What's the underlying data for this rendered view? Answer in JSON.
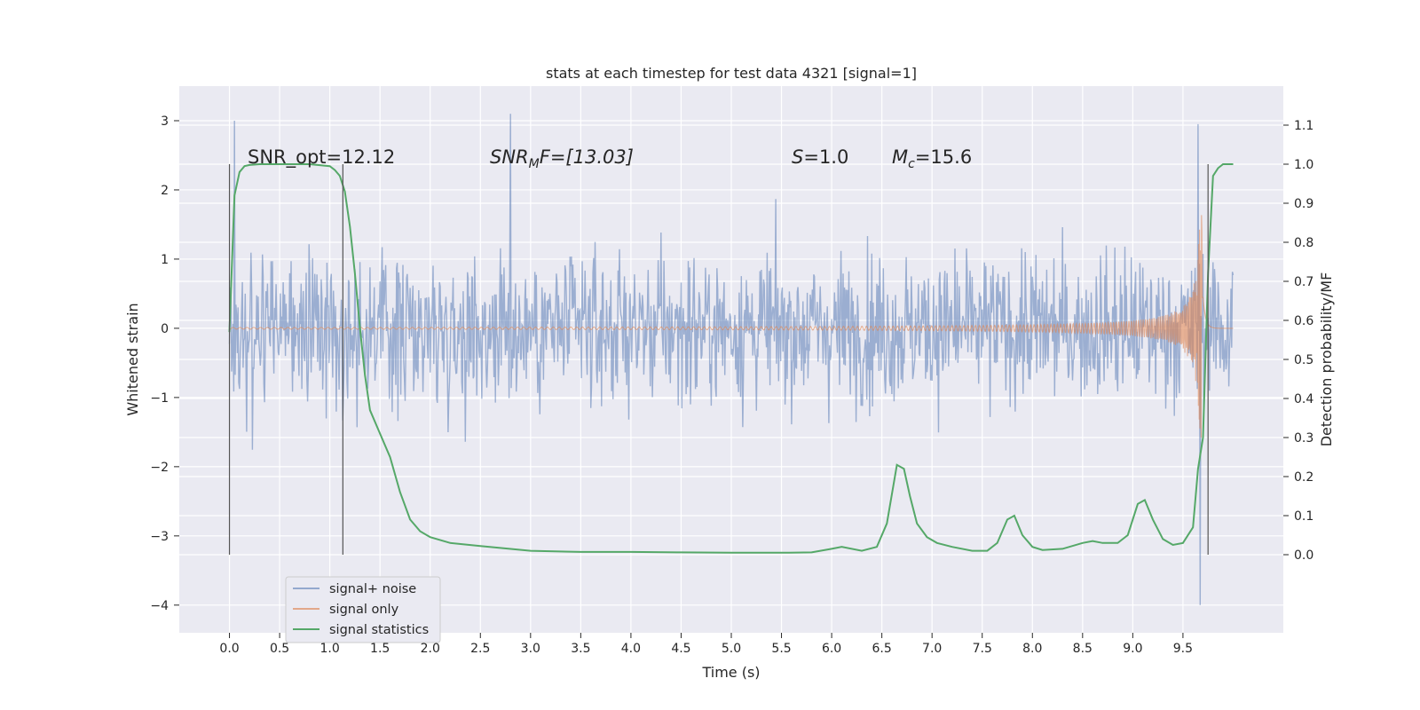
{
  "chart_data": {
    "type": "line",
    "title": "stats at each timestep for test data 4321 [signal=1]",
    "xlabel": "Time (s)",
    "ylabel_left": "Whitened strain",
    "ylabel_right": "Detection probability/MF",
    "xlim": [
      -0.5,
      10.5
    ],
    "ylim_left": [
      -4.4,
      3.5
    ],
    "ylim_right": [
      -0.2,
      1.2
    ],
    "xticks": [
      "0.0",
      "0.5",
      "1.0",
      "1.5",
      "2.0",
      "2.5",
      "3.0",
      "3.5",
      "4.0",
      "4.5",
      "5.0",
      "5.5",
      "6.0",
      "6.5",
      "7.0",
      "7.5",
      "8.0",
      "8.5",
      "9.0",
      "9.5"
    ],
    "yticks_left": [
      "−4",
      "−3",
      "−2",
      "−1",
      "0",
      "1",
      "2",
      "3"
    ],
    "yticks_right": [
      "0.0",
      "0.1",
      "0.2",
      "0.3",
      "0.4",
      "0.5",
      "0.6",
      "0.7",
      "0.8",
      "0.9",
      "1.0",
      "1.1"
    ],
    "grid": true,
    "legend_position": "lower-left",
    "background_color": "#eaeaf2",
    "series": [
      {
        "name": "signal+ noise",
        "color": "#4c72b0",
        "alpha": 0.5,
        "x_range": [
          0,
          10
        ],
        "envelope": [
          -1.5,
          1.5
        ],
        "peak_max": 3.1,
        "peak_min": -4.0
      },
      {
        "name": "signal only",
        "color": "#dd8452",
        "alpha": 0.6,
        "x_range": [
          0,
          10
        ],
        "merger_time": 9.7,
        "peak_amplitude": 2.0
      },
      {
        "name": "signal statistics",
        "color": "#55a868",
        "x": [
          0.0,
          0.05,
          0.1,
          0.15,
          0.2,
          0.3,
          0.5,
          0.8,
          1.0,
          1.05,
          1.1,
          1.15,
          1.2,
          1.25,
          1.3,
          1.35,
          1.4,
          1.5,
          1.6,
          1.7,
          1.8,
          1.9,
          2.0,
          2.2,
          2.5,
          3.0,
          3.5,
          4.0,
          4.5,
          5.0,
          5.5,
          5.8,
          6.0,
          6.1,
          6.3,
          6.45,
          6.55,
          6.65,
          6.72,
          6.78,
          6.85,
          6.95,
          7.05,
          7.2,
          7.4,
          7.55,
          7.65,
          7.75,
          7.82,
          7.9,
          8.0,
          8.1,
          8.3,
          8.5,
          8.6,
          8.7,
          8.85,
          8.95,
          9.05,
          9.12,
          9.2,
          9.3,
          9.4,
          9.5,
          9.6,
          9.65,
          9.7,
          9.75,
          9.8,
          9.85,
          9.9,
          9.95,
          10.0
        ],
        "y": [
          0.57,
          0.92,
          0.98,
          0.995,
          0.998,
          1.0,
          1.0,
          1.0,
          0.995,
          0.985,
          0.97,
          0.93,
          0.84,
          0.72,
          0.58,
          0.46,
          0.37,
          0.31,
          0.25,
          0.16,
          0.09,
          0.06,
          0.045,
          0.03,
          0.022,
          0.01,
          0.007,
          0.007,
          0.006,
          0.005,
          0.005,
          0.006,
          0.015,
          0.02,
          0.01,
          0.02,
          0.08,
          0.23,
          0.22,
          0.15,
          0.08,
          0.045,
          0.03,
          0.02,
          0.01,
          0.01,
          0.03,
          0.09,
          0.1,
          0.05,
          0.02,
          0.012,
          0.015,
          0.03,
          0.035,
          0.03,
          0.03,
          0.05,
          0.13,
          0.14,
          0.09,
          0.04,
          0.025,
          0.03,
          0.07,
          0.22,
          0.3,
          0.72,
          0.97,
          0.99,
          1.0,
          1.0,
          1.0
        ]
      }
    ],
    "vlines": [
      0.0,
      1.13,
      9.75
    ],
    "annotations": [
      {
        "text": "SNR_opt=12.12"
      },
      {
        "text": "SNR_MF=[13.03]",
        "parts": [
          "SNR",
          "M",
          "F=[13.03]"
        ]
      },
      {
        "text": "S=1.0",
        "parts": [
          "S",
          "=1.0"
        ]
      },
      {
        "text": "M_c=15.6",
        "parts": [
          "M",
          "c",
          "=15.6"
        ]
      }
    ]
  }
}
